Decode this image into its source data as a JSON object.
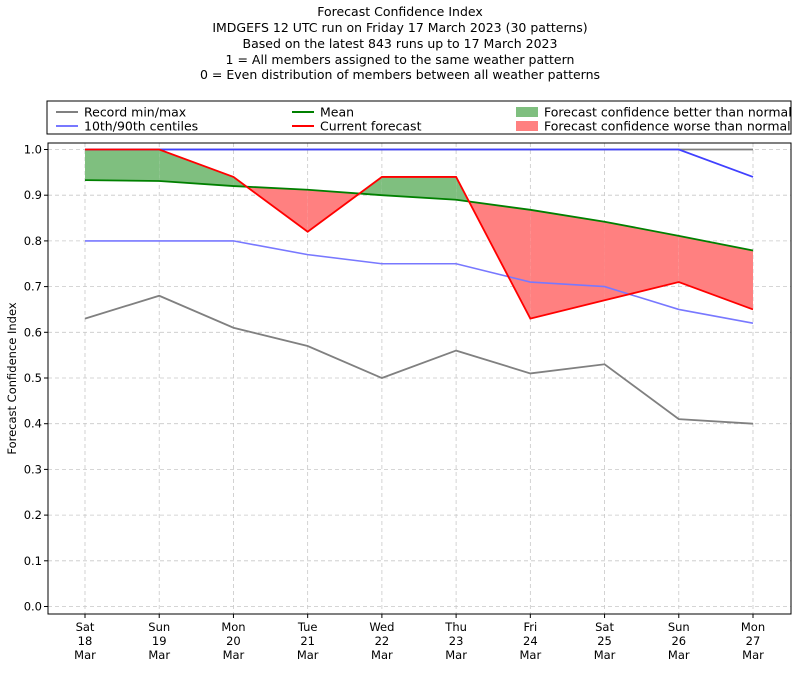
{
  "chart_data": {
    "type": "line",
    "title_lines": [
      "Forecast Confidence Index",
      "IMDGEFS 12 UTC run on Friday 17 March 2023 (30 patterns)",
      "Based on the latest 843 runs up to 17 March 2023",
      "1 = All members assigned to the same weather pattern",
      "0 = Even distribution of members between all weather patterns"
    ],
    "ylabel": "Forecast Confidence Index",
    "xlabel": "",
    "ylim": [
      0,
      1.0
    ],
    "yticks": [
      "0.0",
      "0.1",
      "0.2",
      "0.3",
      "0.4",
      "0.5",
      "0.6",
      "0.7",
      "0.8",
      "0.9",
      "1.0"
    ],
    "categories": [
      [
        "Sat",
        "18",
        "Mar"
      ],
      [
        "Sun",
        "19",
        "Mar"
      ],
      [
        "Mon",
        "20",
        "Mar"
      ],
      [
        "Tue",
        "21",
        "Mar"
      ],
      [
        "Wed",
        "22",
        "Mar"
      ],
      [
        "Thu",
        "23",
        "Mar"
      ],
      [
        "Fri",
        "24",
        "Mar"
      ],
      [
        "Sat",
        "25",
        "Mar"
      ],
      [
        "Sun",
        "26",
        "Mar"
      ],
      [
        "Mon",
        "27",
        "Mar"
      ]
    ],
    "grid": true,
    "legend_position": "top",
    "series": [
      {
        "name": "Record min/max",
        "role": "record_min",
        "color": "#808080",
        "values": [
          0.63,
          0.68,
          0.61,
          0.57,
          0.5,
          0.56,
          0.51,
          0.53,
          0.41,
          0.4
        ]
      },
      {
        "name": "Record min/max",
        "role": "record_max",
        "color": "#808080",
        "values": [
          1.0,
          1.0,
          1.0,
          1.0,
          1.0,
          1.0,
          1.0,
          1.0,
          1.0,
          1.0
        ]
      },
      {
        "name": "10th/90th centiles",
        "role": "p10",
        "color": "#7878ff",
        "values": [
          0.8,
          0.8,
          0.8,
          0.77,
          0.75,
          0.75,
          0.71,
          0.7,
          0.65,
          0.62
        ]
      },
      {
        "name": "10th/90th centiles",
        "role": "p90",
        "color": "#4040ff",
        "values": [
          1.0,
          1.0,
          1.0,
          1.0,
          1.0,
          1.0,
          1.0,
          1.0,
          1.0,
          0.94
        ]
      },
      {
        "name": "Mean",
        "role": "mean",
        "color": "#008000",
        "values": [
          0.933,
          0.931,
          0.92,
          0.912,
          0.9,
          0.89,
          0.868,
          0.842,
          0.811,
          0.779
        ]
      },
      {
        "name": "Current forecast",
        "role": "current",
        "color": "#ff0000",
        "values": [
          1.0,
          1.0,
          0.94,
          0.82,
          0.94,
          0.94,
          0.63,
          0.67,
          0.71,
          0.65
        ]
      }
    ],
    "fills": {
      "better": {
        "label": "Forecast confidence better than normal",
        "color": "#7fbf7f"
      },
      "worse": {
        "label": "Forecast confidence worse than normal",
        "color": "#ff8080"
      }
    },
    "legend": [
      {
        "label": "Record min/max",
        "kind": "line",
        "color": "#808080"
      },
      {
        "label": "10th/90th centiles",
        "kind": "line",
        "color": "#7878ff"
      },
      {
        "label": "Mean",
        "kind": "line",
        "color": "#008000"
      },
      {
        "label": "Current forecast",
        "kind": "line",
        "color": "#ff0000"
      },
      {
        "label": "Forecast confidence better than normal",
        "kind": "patch",
        "color": "#7fbf7f"
      },
      {
        "label": "Forecast confidence worse than normal",
        "kind": "patch",
        "color": "#ff8080"
      }
    ]
  }
}
